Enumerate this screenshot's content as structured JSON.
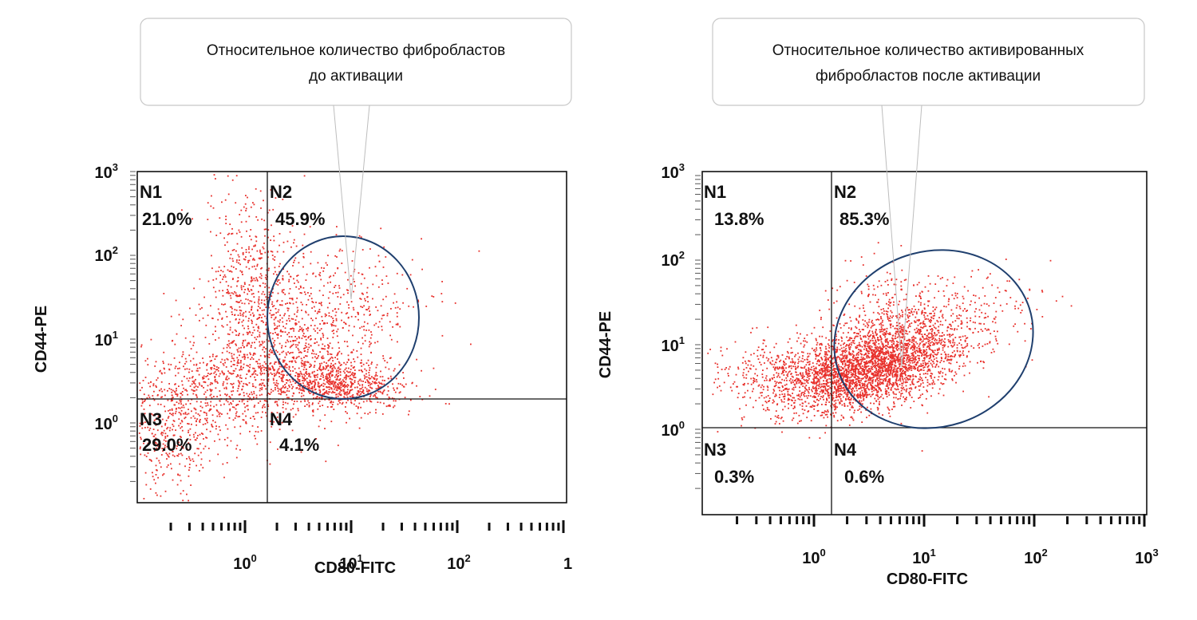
{
  "chart_data": [
    {
      "type": "scatter",
      "title": "",
      "callout": [
        "Относительное количество фибробластов",
        "до активации"
      ],
      "xlabel": "CD80-FITC",
      "ylabel": "CD44-PE",
      "axis_scale": "log",
      "xlim": [
        0.1,
        1000
      ],
      "ylim": [
        0.1,
        1000
      ],
      "x_ticks": [
        {
          "base": "10",
          "exp": "0"
        },
        {
          "base": "10",
          "exp": "1"
        },
        {
          "base": "10",
          "exp": "2"
        },
        {
          "base": "1",
          "exp": ""
        }
      ],
      "y_ticks": [
        {
          "base": "10",
          "exp": "3"
        },
        {
          "base": "10",
          "exp": "2"
        },
        {
          "base": "10",
          "exp": "1"
        },
        {
          "base": "10",
          "exp": "0"
        }
      ],
      "gate": {
        "x": 1.6,
        "y": 1.9
      },
      "quadrants": [
        {
          "name": "N1",
          "percent": "21.0%"
        },
        {
          "name": "N2",
          "percent": "45.9%"
        },
        {
          "name": "N3",
          "percent": "29.0%"
        },
        {
          "name": "N4",
          "percent": "4.1%"
        }
      ],
      "point_color": "#e8302b",
      "ellipse_color": "#1f3f6e",
      "callout_border_color": "#c8c8c8"
    },
    {
      "type": "scatter",
      "title": "",
      "callout": [
        "Относительное количество активированных",
        "фибробластов после активации"
      ],
      "xlabel": "CD80-FITC",
      "ylabel": "CD44-PE",
      "axis_scale": "log",
      "xlim": [
        0.1,
        1000
      ],
      "ylim": [
        0.1,
        1000
      ],
      "x_ticks": [
        {
          "base": "10",
          "exp": "0"
        },
        {
          "base": "10",
          "exp": "1"
        },
        {
          "base": "10",
          "exp": "2"
        },
        {
          "base": "10",
          "exp": "3"
        }
      ],
      "y_ticks": [
        {
          "base": "10",
          "exp": "3"
        },
        {
          "base": "10",
          "exp": "2"
        },
        {
          "base": "10",
          "exp": "1"
        },
        {
          "base": "10",
          "exp": "0"
        }
      ],
      "gate": {
        "x": 1.4,
        "y": 1.05
      },
      "quadrants": [
        {
          "name": "N1",
          "percent": "13.8%"
        },
        {
          "name": "N2",
          "percent": "85.3%"
        },
        {
          "name": "N3",
          "percent": "0.3%"
        },
        {
          "name": "N4",
          "percent": "0.6%"
        }
      ],
      "point_color": "#e8302b",
      "ellipse_color": "#1f3f6e",
      "callout_border_color": "#c8c8c8"
    }
  ]
}
